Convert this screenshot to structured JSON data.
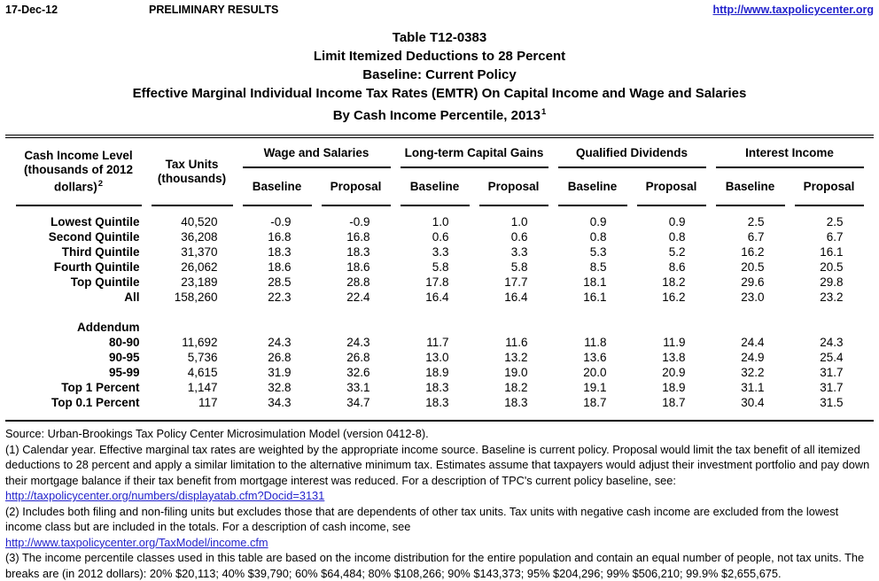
{
  "page": {
    "date": "17-Dec-12",
    "status": "PRELIMINARY RESULTS",
    "site_url": "http://www.taxpolicycenter.org"
  },
  "title": {
    "line1": "Table T12-0383",
    "line2": "Limit Itemized Deductions to 28 Percent",
    "line3": "Baseline: Current Policy",
    "line4": "Effective Marginal Individual Income Tax Rates (EMTR) On Capital Income and Wage and Salaries",
    "line5": "By Cash Income Percentile, 2013",
    "line5_sup": "1"
  },
  "table": {
    "row_header_label": "Cash Income Level (thousands of 2012 dollars)",
    "row_header_sup": "2",
    "tax_units_header": "Tax Units (thousands)",
    "groups": [
      "Wage and Salaries",
      "Long-term Capital Gains",
      "Qualified Dividends",
      "Interest Income"
    ],
    "subheaders": {
      "baseline": "Baseline",
      "proposal": "Proposal"
    },
    "rows": [
      {
        "label": "Lowest Quintile",
        "values": [
          "40,520",
          "-0.9",
          "-0.9",
          "1.0",
          "1.0",
          "0.9",
          "0.9",
          "2.5",
          "2.5"
        ]
      },
      {
        "label": "Second Quintile",
        "values": [
          "36,208",
          "16.8",
          "16.8",
          "0.6",
          "0.6",
          "0.8",
          "0.8",
          "6.7",
          "6.7"
        ]
      },
      {
        "label": "Third Quintile",
        "values": [
          "31,370",
          "18.3",
          "18.3",
          "3.3",
          "3.3",
          "5.3",
          "5.2",
          "16.2",
          "16.1"
        ]
      },
      {
        "label": "Fourth Quintile",
        "values": [
          "26,062",
          "18.6",
          "18.6",
          "5.8",
          "5.8",
          "8.5",
          "8.6",
          "20.5",
          "20.5"
        ]
      },
      {
        "label": "Top Quintile",
        "values": [
          "23,189",
          "28.5",
          "28.8",
          "17.8",
          "17.7",
          "18.1",
          "18.2",
          "29.6",
          "29.8"
        ]
      },
      {
        "label": "All",
        "values": [
          "158,260",
          "22.3",
          "22.4",
          "16.4",
          "16.4",
          "16.1",
          "16.2",
          "23.0",
          "23.2"
        ]
      }
    ],
    "addendum_label": "Addendum",
    "addendum_rows": [
      {
        "label": "80-90",
        "values": [
          "11,692",
          "24.3",
          "24.3",
          "11.7",
          "11.6",
          "11.8",
          "11.9",
          "24.4",
          "24.3"
        ]
      },
      {
        "label": "90-95",
        "values": [
          "5,736",
          "26.8",
          "26.8",
          "13.0",
          "13.2",
          "13.6",
          "13.8",
          "24.9",
          "25.4"
        ]
      },
      {
        "label": "95-99",
        "values": [
          "4,615",
          "31.9",
          "32.6",
          "18.9",
          "19.0",
          "20.0",
          "20.9",
          "32.2",
          "31.7"
        ]
      },
      {
        "label": "Top 1 Percent",
        "values": [
          "1,147",
          "32.8",
          "33.1",
          "18.3",
          "18.2",
          "19.1",
          "18.9",
          "31.1",
          "31.7"
        ]
      },
      {
        "label": "Top 0.1 Percent",
        "values": [
          "117",
          "34.3",
          "34.7",
          "18.3",
          "18.3",
          "18.7",
          "18.7",
          "30.4",
          "31.5"
        ]
      }
    ]
  },
  "footnotes": {
    "source": "Source: Urban-Brookings Tax Policy Center Microsimulation Model (version 0412-8).",
    "note1": "(1) Calendar year. Effective marginal tax rates are weighted by the appropriate income source. Baseline is current policy.  Proposal would limit the tax benefit of all itemized deductions to 28 percent and apply a similar limitation to the alternative minimum tax. Estimates assume that taxpayers would adjust their investment portfolio and pay down their mortgage balance if their tax benefit from mortgage interest was reduced. For a description of TPC's current policy baseline, see:",
    "link1": "http://taxpolicycenter.org/numbers/displayatab.cfm?Docid=3131",
    "note2": "(2) Includes both filing and non-filing units but excludes those that are dependents of other tax units. Tax units with negative cash income are excluded from the lowest income class but are included in the totals. For a description of cash income, see",
    "link2": "http://www.taxpolicycenter.org/TaxModel/income.cfm",
    "note3": "(3) The income percentile classes used in this table are based on the income distribution for the entire population and contain an equal number of people, not tax units. The breaks are (in 2012 dollars): 20% $20,113; 40% $39,790; 60% $64,484; 80% $108,266; 90% $143,373; 95% $204,296; 99% $506,210; 99.9% $2,655,675."
  }
}
